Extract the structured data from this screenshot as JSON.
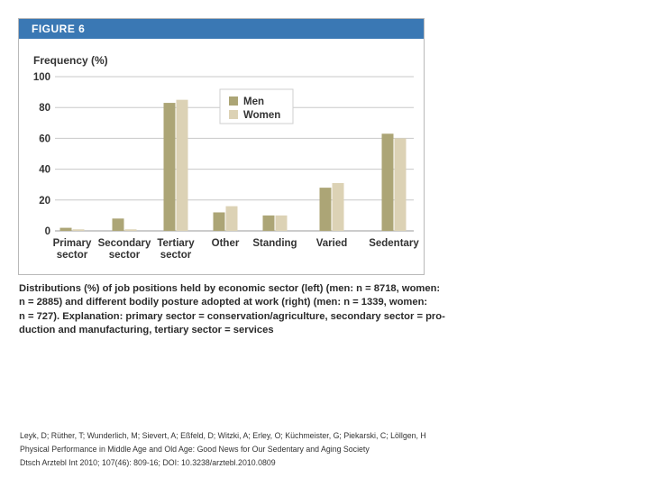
{
  "figure": {
    "label": "FIGURE 6",
    "caption_lines": [
      "Distributions (%) of job positions held by economic sector (left) (men: n = 8718, women:",
      "n = 2885) and different bodily posture adopted at work (right) (men: n = 1339, women:",
      "n = 727). Explanation: primary sector = conservation/agriculture, secondary sector = pro-",
      "duction and manufacturing, tertiary sector = services"
    ]
  },
  "citation": {
    "lines": [
      "Leyk, D; Rüther, T; Wunderlich, M; Sievert, A; Eßfeld, D; Witzki, A; Erley, O; Küchmeister, G; Piekarski, C; Löllgen, H",
      "Physical Performance in Middle Age and Old Age: Good News for Our Sedentary and Aging Society",
      "Dtsch Arztebl Int 2010; 107(46): 809-16; DOI: 10.3238/arztebl.2010.0809"
    ]
  },
  "colors": {
    "men": "#aca576",
    "women": "#dcd2b5",
    "header": "#3a78b4",
    "grid": "#c8c8c8"
  },
  "chart_data": {
    "type": "bar",
    "ylabel": "Frequency (%)",
    "ylim": [
      0,
      100
    ],
    "yticks": [
      0,
      20,
      40,
      60,
      80,
      100
    ],
    "grid": true,
    "legend": "top-center",
    "categories": [
      {
        "lines": [
          "Primary",
          "sector"
        ]
      },
      {
        "lines": [
          "Secondary",
          "sector"
        ]
      },
      {
        "lines": [
          "Tertiary",
          "sector"
        ]
      },
      {
        "lines": [
          "Other"
        ]
      },
      {
        "lines": [
          "Standing"
        ]
      },
      {
        "lines": [
          "Varied"
        ]
      },
      {
        "lines": [
          "Sedentary"
        ]
      }
    ],
    "series": [
      {
        "name": "Men",
        "values": [
          2,
          8,
          83,
          12,
          10,
          28,
          63
        ]
      },
      {
        "name": "Women",
        "values": [
          1,
          1,
          85,
          16,
          10,
          31,
          60
        ]
      }
    ]
  }
}
